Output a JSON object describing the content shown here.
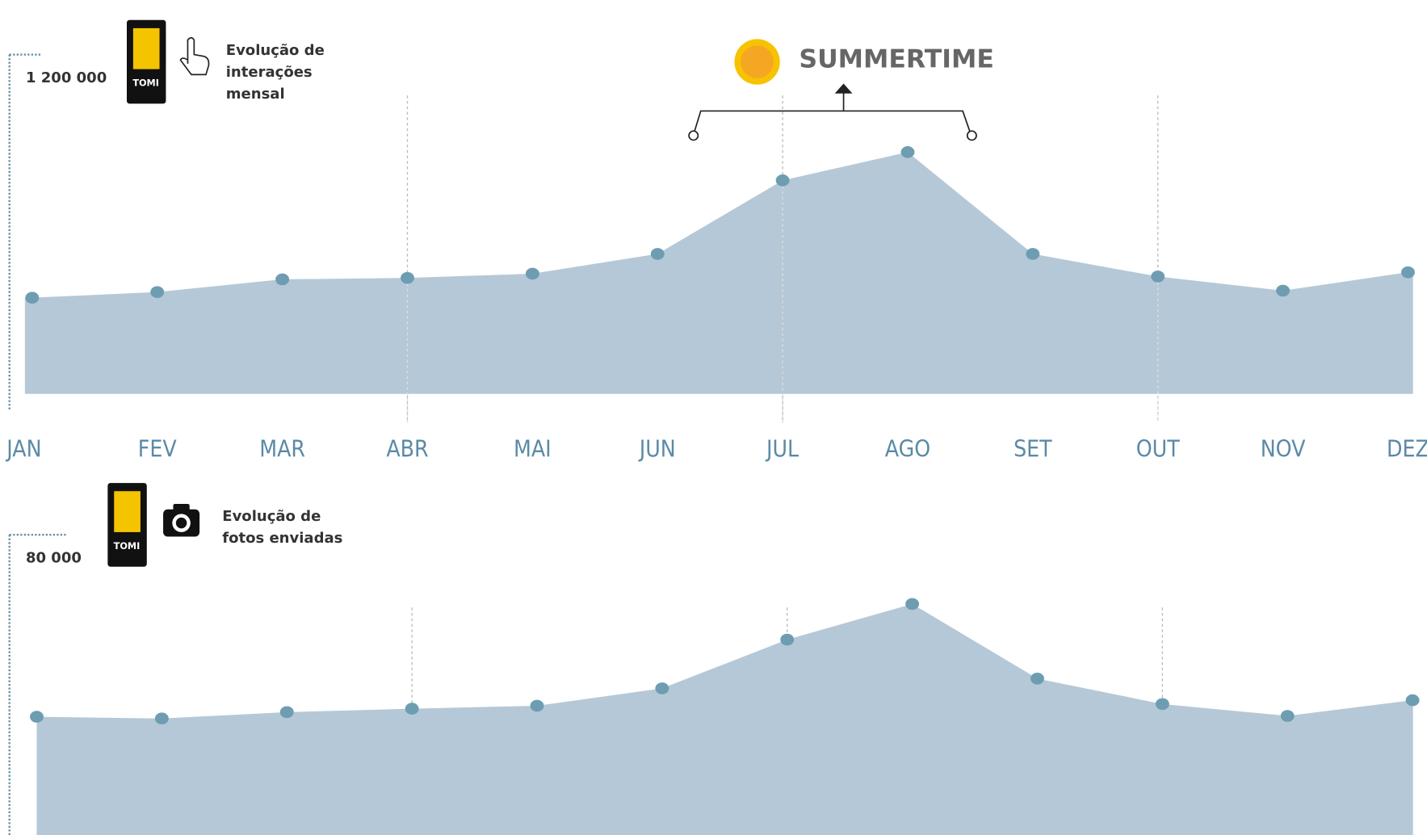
{
  "chart_data": [
    {
      "type": "area",
      "title": [
        "Evolução de",
        "interações",
        "mensal"
      ],
      "logo": "TOMI",
      "annotation": "SUMMERTIME",
      "categories": [
        "JAN",
        "FEV",
        "MAR",
        "ABR",
        "MAI",
        "JUN",
        "JUL",
        "AGO",
        "SET",
        "OUT",
        "NOV",
        "DEZ"
      ],
      "values": [
        340000,
        360000,
        405000,
        410000,
        425000,
        495000,
        755000,
        855000,
        495000,
        415000,
        365000,
        430000
      ],
      "color": "#b5c8d7",
      "point_color": "#6e9db2",
      "ylim": [
        0,
        1200000
      ],
      "yticks": [
        {
          "value": 1200000,
          "label": "1 200 000"
        }
      ]
    },
    {
      "type": "area",
      "title": [
        "Evolução de",
        "fotos enviadas"
      ],
      "logo": "TOMI",
      "values": [
        37100,
        36700,
        38200,
        39000,
        39700,
        43800,
        55300,
        63700,
        46100,
        40100,
        37300,
        41000
      ],
      "color": "#b5c8d7",
      "point_color": "#6e9db2",
      "ylim": [
        0,
        80000
      ],
      "yticks": [
        {
          "value": 80000,
          "label": "80 000"
        }
      ]
    }
  ]
}
